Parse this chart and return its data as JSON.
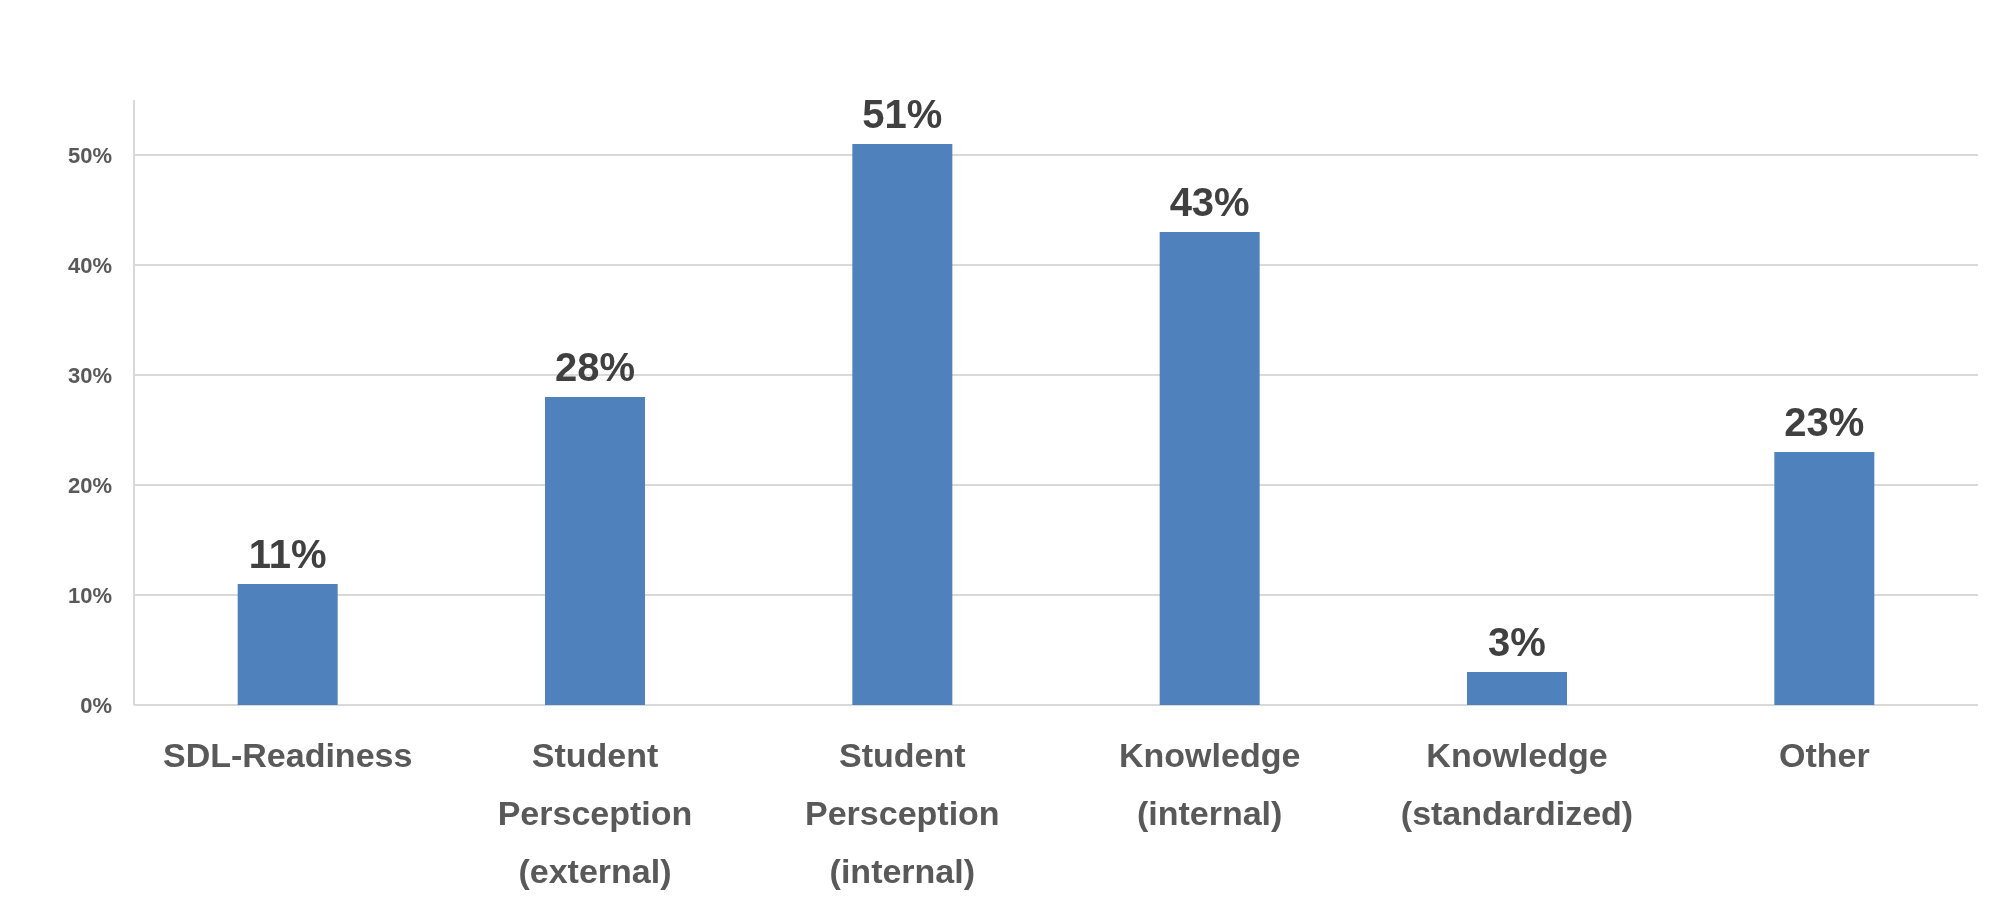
{
  "chart_data": {
    "type": "bar",
    "categories": [
      "SDL-Readiness",
      "Student Persception (external)",
      "Student Persception (internal)",
      "Knowledge (internal)",
      "Knowledge (standardized)",
      "Other"
    ],
    "values": [
      11,
      28,
      51,
      43,
      3,
      23
    ],
    "value_labels": [
      "11%",
      "28%",
      "51%",
      "43%",
      "3%",
      "23%"
    ],
    "color": "#4f81bd",
    "ylim": [
      0,
      55
    ],
    "yticks": [
      {
        "value": 0,
        "label": "0%"
      },
      {
        "value": 10,
        "label": "10%"
      },
      {
        "value": 20,
        "label": "20%"
      },
      {
        "value": 30,
        "label": "30%"
      },
      {
        "value": 40,
        "label": "40%"
      },
      {
        "value": 50,
        "label": "50%"
      }
    ],
    "grid": "y"
  }
}
